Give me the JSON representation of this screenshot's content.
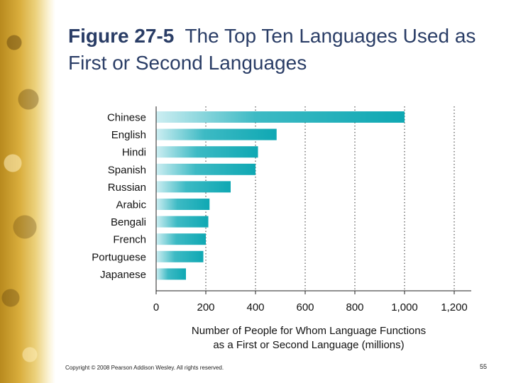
{
  "slide": {
    "title_prefix": "Figure 27-5",
    "title_text": "The Top Ten Languages Used as First or Second Languages",
    "copyright": "Copyright © 2008 Pearson Addison Wesley. All rights reserved.",
    "page_number": "55"
  },
  "chart_data": {
    "type": "bar",
    "orientation": "horizontal",
    "categories": [
      "Chinese",
      "English",
      "Hindi",
      "Spanish",
      "Russian",
      "Arabic",
      "Bengali",
      "French",
      "Portuguese",
      "Japanese"
    ],
    "values": [
      1000,
      485,
      410,
      400,
      300,
      215,
      210,
      200,
      190,
      120
    ],
    "xlabel_line1": "Number of People for Whom Language Functions",
    "xlabel_line2": "as a First or Second Language (millions)",
    "xlim": [
      0,
      1200
    ],
    "xticks": [
      0,
      200,
      400,
      600,
      800,
      1000,
      1200
    ],
    "xtick_labels": [
      "0",
      "200",
      "400",
      "600",
      "800",
      "1,000",
      "1,200"
    ],
    "grid": "vertical dotted",
    "colors": {
      "bar_light": "#cdeef2",
      "bar_dark": "#0fa8b3"
    }
  }
}
